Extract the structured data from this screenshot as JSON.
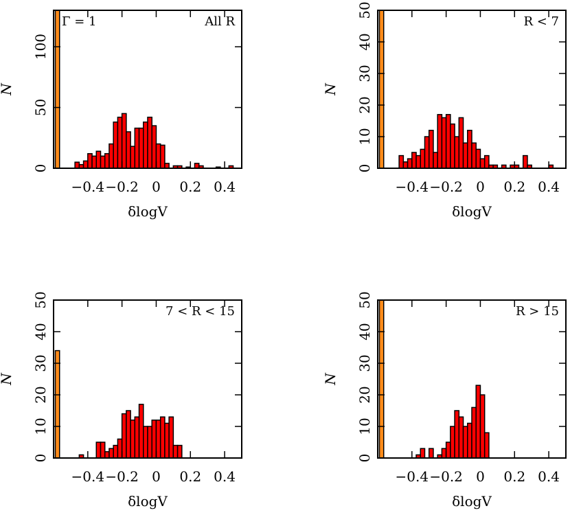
{
  "chart_data": [
    {
      "type": "histogram",
      "annotations": [
        "Γ = 1",
        "All R"
      ],
      "xlabel": "δlogV",
      "ylabel": "N",
      "xlim": [
        -0.6,
        0.5
      ],
      "ylim": [
        0,
        130
      ],
      "xticks": [
        {
          "value": -0.4,
          "label": "−0.4"
        },
        {
          "value": -0.2,
          "label": "−0.2"
        },
        0,
        0.2,
        0.4
      ],
      "yticks": [
        0,
        50,
        100
      ],
      "series": [
        {
          "color": "#ff0000",
          "bins": [
            -0.55,
            -0.525,
            -0.5,
            -0.475,
            -0.45,
            -0.425,
            -0.4,
            -0.375,
            -0.35,
            -0.325,
            -0.3,
            -0.275,
            -0.25,
            -0.225,
            -0.2,
            -0.175,
            -0.15,
            -0.125,
            -0.1,
            -0.075,
            -0.05,
            -0.025,
            0,
            0.025,
            0.05,
            0.075,
            0.1,
            0.125,
            0.15,
            0.175,
            0.2,
            0.225,
            0.25,
            0.275,
            0.3,
            0.325,
            0.35,
            0.375,
            0.4,
            0.425,
            0.45
          ],
          "values": [
            0,
            0,
            0,
            5,
            3,
            6,
            12,
            10,
            14,
            10,
            12,
            20,
            38,
            42,
            45,
            30,
            18,
            33,
            33,
            38,
            42,
            35,
            20,
            19,
            4,
            0,
            2,
            2,
            0,
            1,
            0,
            4,
            2,
            0,
            0,
            0,
            1,
            0,
            0,
            2
          ]
        },
        {
          "color": "#ff8c1a",
          "bins": [
            -0.59,
            -0.565
          ],
          "values": [
            130
          ]
        }
      ]
    },
    {
      "type": "histogram",
      "annotations": [
        "R < 7"
      ],
      "xlabel": "δlogV",
      "ylabel": "N",
      "xlim": [
        -0.6,
        0.5
      ],
      "ylim": [
        0,
        50
      ],
      "xticks": [
        {
          "value": -0.4,
          "label": "−0.4"
        },
        {
          "value": -0.2,
          "label": "−0.2"
        },
        0,
        0.2,
        0.4
      ],
      "yticks": [
        0,
        10,
        20,
        30,
        40,
        50
      ],
      "series": [
        {
          "color": "#ff0000",
          "bins": [
            -0.55,
            -0.525,
            -0.5,
            -0.475,
            -0.45,
            -0.425,
            -0.4,
            -0.375,
            -0.35,
            -0.325,
            -0.3,
            -0.275,
            -0.25,
            -0.225,
            -0.2,
            -0.175,
            -0.15,
            -0.125,
            -0.1,
            -0.075,
            -0.05,
            -0.025,
            0,
            0.025,
            0.05,
            0.075,
            0.1,
            0.125,
            0.15,
            0.175,
            0.2,
            0.225,
            0.25,
            0.275,
            0.3,
            0.325,
            0.35,
            0.375,
            0.4,
            0.425,
            0.45
          ],
          "values": [
            0,
            0,
            0,
            4,
            2,
            3,
            5,
            4,
            6,
            10,
            12,
            5,
            17,
            16,
            17,
            14,
            10,
            16,
            8,
            12,
            8,
            6,
            3,
            4,
            1,
            1,
            0,
            1,
            0,
            1,
            1,
            0,
            4,
            1,
            0,
            0,
            0,
            0,
            1,
            0
          ]
        },
        {
          "color": "#ff8c1a",
          "bins": [
            -0.59,
            -0.565
          ],
          "values": [
            50
          ]
        }
      ]
    },
    {
      "type": "histogram",
      "annotations": [
        "7 < R < 15"
      ],
      "xlabel": "δlogV",
      "ylabel": "N",
      "xlim": [
        -0.6,
        0.5
      ],
      "ylim": [
        0,
        50
      ],
      "xticks": [
        {
          "value": -0.4,
          "label": "−0.4"
        },
        {
          "value": -0.2,
          "label": "−0.2"
        },
        0,
        0.2,
        0.4
      ],
      "yticks": [
        0,
        10,
        20,
        30,
        40,
        50
      ],
      "series": [
        {
          "color": "#ff0000",
          "bins": [
            -0.55,
            -0.525,
            -0.5,
            -0.475,
            -0.45,
            -0.425,
            -0.4,
            -0.375,
            -0.35,
            -0.325,
            -0.3,
            -0.275,
            -0.25,
            -0.225,
            -0.2,
            -0.175,
            -0.15,
            -0.125,
            -0.1,
            -0.075,
            -0.05,
            -0.025,
            0,
            0.025,
            0.05,
            0.075,
            0.1,
            0.125,
            0.15,
            0.175,
            0.2,
            0.225,
            0.25,
            0.275,
            0.3,
            0.325,
            0.35,
            0.375,
            0.4,
            0.425,
            0.45
          ],
          "values": [
            0,
            0,
            0,
            0,
            1,
            0,
            0,
            0,
            5,
            5,
            2,
            3,
            4,
            6,
            14,
            15,
            12,
            13,
            17,
            10,
            10,
            12,
            12,
            13,
            11,
            13,
            4,
            4,
            0,
            0,
            0,
            0,
            0,
            0,
            0,
            0,
            0,
            0,
            0,
            0
          ]
        },
        {
          "color": "#ff8c1a",
          "bins": [
            -0.59,
            -0.565
          ],
          "values": [
            34
          ]
        }
      ]
    },
    {
      "type": "histogram",
      "annotations": [
        "R > 15"
      ],
      "xlabel": "δlogV",
      "ylabel": "N",
      "xlim": [
        -0.6,
        0.5
      ],
      "ylim": [
        0,
        50
      ],
      "xticks": [
        {
          "value": -0.4,
          "label": "−0.4"
        },
        {
          "value": -0.2,
          "label": "−0.2"
        },
        0,
        0.2,
        0.4
      ],
      "yticks": [
        0,
        10,
        20,
        30,
        40,
        50
      ],
      "series": [
        {
          "color": "#ff0000",
          "bins": [
            -0.55,
            -0.525,
            -0.5,
            -0.475,
            -0.45,
            -0.425,
            -0.4,
            -0.375,
            -0.35,
            -0.325,
            -0.3,
            -0.275,
            -0.25,
            -0.225,
            -0.2,
            -0.175,
            -0.15,
            -0.125,
            -0.1,
            -0.075,
            -0.05,
            -0.025,
            0,
            0.025,
            0.05,
            0.075,
            0.1,
            0.125,
            0.15,
            0.175,
            0.2,
            0.225,
            0.25,
            0.275,
            0.3,
            0.325,
            0.35,
            0.375,
            0.4,
            0.425,
            0.45
          ],
          "values": [
            0,
            0,
            0,
            0,
            0,
            0,
            0,
            1,
            3,
            0,
            3,
            0,
            1,
            3,
            5,
            10,
            15,
            13,
            10,
            11,
            16,
            23,
            20,
            8,
            0,
            0,
            0,
            0,
            0,
            0,
            0,
            0,
            0,
            0,
            0,
            0,
            0,
            0,
            0,
            0
          ]
        },
        {
          "color": "#ff8c1a",
          "bins": [
            -0.59,
            -0.565
          ],
          "values": [
            50
          ]
        }
      ]
    }
  ]
}
